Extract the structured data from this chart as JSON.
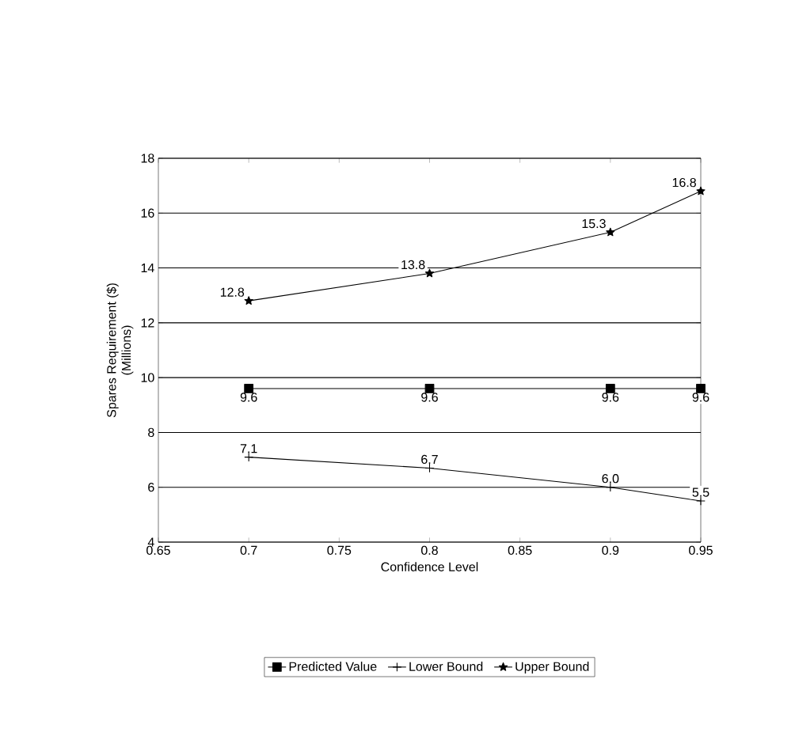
{
  "chart_data": {
    "type": "line",
    "xlabel": "Confidence Level",
    "ylabel": "Spares Requirement ($)\n(Millions)",
    "x": [
      0.7,
      0.8,
      0.9,
      0.95
    ],
    "series": [
      {
        "name": "Predicted Value",
        "color": "#000000",
        "marker": "square",
        "values": [
          9.6,
          9.6,
          9.6,
          9.6
        ],
        "value_labels": [
          "9.6",
          "9.6",
          "9.6",
          "9.6"
        ]
      },
      {
        "name": "Lower Bound",
        "color": "#000000",
        "marker": "cross",
        "values": [
          7.1,
          6.7,
          6.0,
          5.5
        ],
        "value_labels": [
          "7.1",
          "6.7",
          "6.0",
          "5.5"
        ]
      },
      {
        "name": "Upper Bound",
        "color": "#000000",
        "marker": "star",
        "values": [
          12.8,
          13.8,
          15.3,
          16.8
        ],
        "value_labels": [
          "12.8",
          "13.8",
          "15.3",
          "16.8"
        ]
      }
    ],
    "xlim": [
      0.65,
      0.95
    ],
    "ylim": [
      4,
      18
    ],
    "xticks": [
      0.65,
      0.7,
      0.75,
      0.8,
      0.85,
      0.9,
      0.95
    ],
    "yticks": [
      4,
      6,
      8,
      10,
      12,
      14,
      16,
      18
    ],
    "grid": "y",
    "legend": "bottom",
    "line_style": "solid",
    "data_labels": true
  }
}
